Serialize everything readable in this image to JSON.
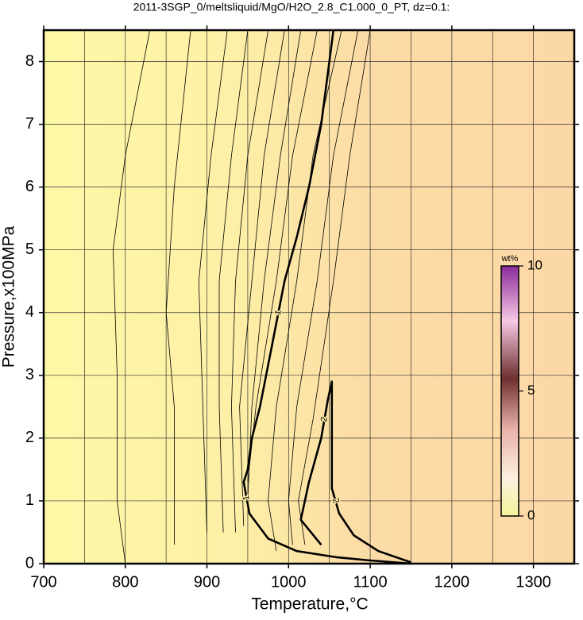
{
  "chart_data": {
    "type": "contour",
    "title": "2011-3SGP_0/meltsliquid/MgO/H2O_2.8_C1.000_0_PT, dz=0.1:",
    "x_label": "Temperature,°C",
    "y_label": "Pressure,x100MPa",
    "xlim": [
      700,
      1350
    ],
    "ylim": [
      0,
      8.5
    ],
    "xticks": [
      700,
      800,
      900,
      1000,
      1100,
      1200,
      1300
    ],
    "yticks": [
      0,
      1,
      2,
      3,
      4,
      5,
      6,
      7,
      8
    ],
    "xgrid": [
      750,
      850,
      950,
      1050,
      1150,
      1250,
      1350
    ],
    "grid": true,
    "line_color": "#000000",
    "colorbar": {
      "title": "wt%",
      "lim": [
        0,
        10
      ],
      "ticks": [
        0,
        5,
        10
      ]
    },
    "contours": [
      {
        "level": 0.2,
        "x": [
          800,
          790,
          790,
          785,
          800,
          830
        ],
        "y": [
          0,
          1,
          3,
          5,
          6.5,
          8.5
        ]
      },
      {
        "level": 0.3,
        "x": [
          860,
          860,
          850,
          860,
          880
        ],
        "y": [
          0.3,
          2.5,
          4,
          6,
          8.5
        ]
      },
      {
        "level": 0.4,
        "x": [
          900,
          895,
          890,
          905,
          925
        ],
        "y": [
          0.5,
          2.5,
          4.5,
          6.5,
          8.5
        ]
      },
      {
        "level": 0.5,
        "x": [
          920,
          915,
          915,
          930,
          950
        ],
        "y": [
          0.5,
          2.5,
          4.5,
          6.5,
          8.5
        ]
      },
      {
        "level": 0.6,
        "x": [
          935,
          930,
          935,
          950,
          975
        ],
        "y": [
          0.5,
          2.5,
          4.5,
          6.5,
          8.5
        ]
      },
      {
        "level": 0.7,
        "x": [
          945,
          940,
          955,
          970,
          995
        ],
        "y": [
          0.6,
          2.5,
          4.5,
          6.5,
          8.5
        ]
      },
      {
        "level": 0.8,
        "x": [
          950,
          955,
          970,
          990,
          1015
        ],
        "y": [
          1,
          2.5,
          4.5,
          6.5,
          8.5
        ]
      },
      {
        "level": 0.9,
        "x": [
          950,
          960,
          985,
          1005,
          1035
        ],
        "y": [
          1.3,
          2.5,
          4.5,
          6.5,
          8.5
        ]
      },
      {
        "level": 1,
        "x": [
          1150,
          1100,
          1060,
          1010,
          975,
          952,
          945,
          950,
          955,
          965,
          980,
          995,
          1010,
          1025,
          1040,
          1055
        ],
        "y": [
          0,
          0.05,
          0.1,
          0.2,
          0.4,
          0.8,
          1.3,
          1.5,
          2,
          2.5,
          3.5,
          4.5,
          5.2,
          6,
          7,
          8.5
        ]
      },
      {
        "level": 1.2,
        "x": [
          985,
          975,
          985,
          1010,
          1030,
          1065
        ],
        "y": [
          0.2,
          1,
          2.5,
          4.5,
          6.5,
          8.5
        ]
      },
      {
        "level": 1.5,
        "x": [
          1005,
          1000,
          1010,
          1035,
          1055,
          1085
        ],
        "y": [
          0.3,
          1,
          2.5,
          4.5,
          6.5,
          8.5
        ]
      },
      {
        "level": 1.8,
        "x": [
          1020,
          1012,
          1030,
          1055,
          1075,
          1100
        ],
        "y": [
          0.3,
          1,
          2.3,
          4.5,
          6.5,
          8.5
        ]
      },
      {
        "level": 2,
        "x": [
          1040,
          1015,
          1025,
          1040,
          1048,
          1053,
          1053,
          1053,
          1062,
          1080,
          1110,
          1150
        ],
        "y": [
          0.3,
          0.7,
          1.3,
          2,
          2.6,
          2.9,
          2,
          1.2,
          0.8,
          0.45,
          0.2,
          0.02
        ]
      }
    ]
  }
}
